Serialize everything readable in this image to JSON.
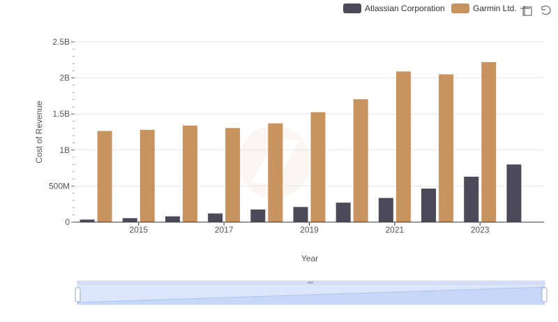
{
  "chart_data": {
    "type": "bar",
    "title": "",
    "xlabel": "Year",
    "ylabel": "Cost of Revenue",
    "ylim": [
      0,
      2500000000
    ],
    "yticks": [
      {
        "value": 0,
        "label": "0"
      },
      {
        "value": 500000000,
        "label": "500M"
      },
      {
        "value": 1000000000,
        "label": "1B"
      },
      {
        "value": 1500000000,
        "label": "1.5B"
      },
      {
        "value": 2000000000,
        "label": "2B"
      },
      {
        "value": 2500000000,
        "label": "2.5B"
      }
    ],
    "categories": [
      "2014",
      "2015",
      "2016",
      "2017",
      "2018",
      "2019",
      "2020",
      "2021",
      "2022",
      "2023",
      "2024"
    ],
    "xtick_labels": [
      "2015",
      "2017",
      "2019",
      "2021",
      "2023"
    ],
    "series": [
      {
        "name": "Atlassian Corporation",
        "color": "#4a4a58",
        "values": [
          35000000,
          55000000,
          80000000,
          120000000,
          175000000,
          210000000,
          270000000,
          335000000,
          465000000,
          630000000,
          800000000
        ]
      },
      {
        "name": "Garmin Ltd.",
        "color": "#c9935f",
        "values": [
          1265000000,
          1280000000,
          1340000000,
          1305000000,
          1370000000,
          1525000000,
          1705000000,
          2090000000,
          2050000000,
          2220000000,
          null
        ]
      }
    ],
    "grid": true,
    "legend_position": "top-right"
  },
  "toolbar": {
    "icons": [
      "zoom-icon",
      "restore-icon"
    ]
  }
}
